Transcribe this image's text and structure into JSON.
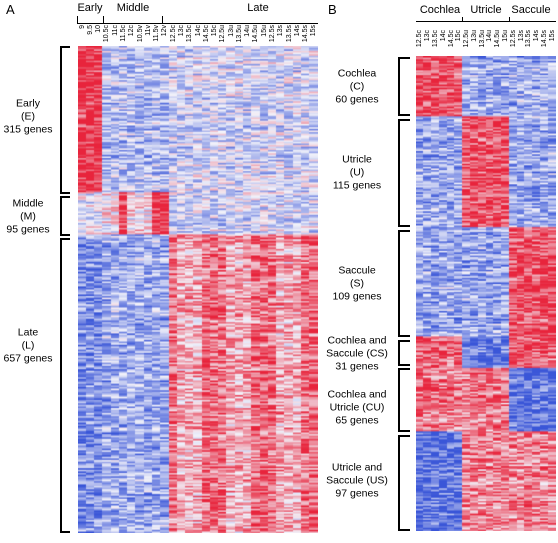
{
  "panel_a": {
    "letter": "A",
    "groups": [
      "Early",
      "Middle",
      "Late"
    ],
    "columns": [
      "9",
      "9.5",
      "10",
      "10.5c",
      "11c",
      "11.5c",
      "12c",
      "10.5v",
      "11v",
      "11.5v",
      "12v",
      "12.5c",
      "13c",
      "13.5c",
      "14c",
      "14.5c",
      "15c",
      "12.5u",
      "13u",
      "13.5u",
      "14u",
      "14.5u",
      "15u",
      "12.5s",
      "13s",
      "13.5s",
      "14s",
      "14.5s",
      "15s"
    ],
    "clusters": [
      {
        "lines": [
          "Early",
          "(E)",
          "315 genes"
        ]
      },
      {
        "lines": [
          "Middle",
          "(M)",
          "95 genes"
        ]
      },
      {
        "lines": [
          "Late",
          "(L)",
          "657 genes"
        ]
      }
    ]
  },
  "panel_b": {
    "letter": "B",
    "groups": [
      "Cochlea",
      "Utricle",
      "Saccule"
    ],
    "columns": [
      "12.5c",
      "13c",
      "13.5c",
      "14c",
      "14.5c",
      "15c",
      "12.5u",
      "13u",
      "13.5u",
      "14u",
      "14.5u",
      "15u",
      "12.5s",
      "13s",
      "13.5s",
      "14s",
      "14.5s",
      "15s"
    ],
    "clusters": [
      {
        "lines": [
          "Cochlea",
          "(C)",
          "60 genes"
        ]
      },
      {
        "lines": [
          "Utricle",
          "(U)",
          "115 genes"
        ]
      },
      {
        "lines": [
          "Saccule",
          "(S)",
          "109 genes"
        ]
      },
      {
        "lines": [
          "Cochlea and",
          "Saccule (CS)",
          "31 genes"
        ]
      },
      {
        "lines": [
          "Cochlea and",
          "Utricle (CU)",
          "65 genes"
        ]
      },
      {
        "lines": [
          "Utricle and",
          "Saccule (US)",
          "97 genes"
        ]
      }
    ]
  },
  "colors": {
    "high": "#e8243c",
    "mid": "#f2f2fa",
    "low": "#3a56d8"
  }
}
